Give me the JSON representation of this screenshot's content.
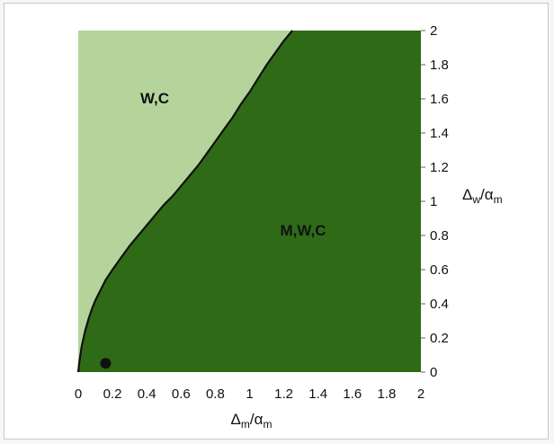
{
  "chart_data": {
    "type": "area",
    "xlabel": {
      "main": "Δ",
      "sub": "m",
      "sep": "/α",
      "sub2": "m"
    },
    "ylabel": {
      "main": "Δ",
      "sub": "w",
      "sep": "/α",
      "sub2": "m"
    },
    "xlim": [
      0,
      2
    ],
    "ylim": [
      0,
      2
    ],
    "x_ticks": [
      "0",
      "0.2",
      "0.4",
      "0.6",
      "0.8",
      "1",
      "1.2",
      "1.4",
      "1.6",
      "1.8",
      "2"
    ],
    "y_ticks": [
      "0",
      "0.2",
      "0.4",
      "0.6",
      "0.8",
      "1",
      "1.2",
      "1.4",
      "1.6",
      "1.8",
      "2"
    ],
    "y_axis_side": "right",
    "grid": false,
    "regions": [
      {
        "label": "W,C",
        "color": "#b5d49b",
        "location": "upper-left"
      },
      {
        "label": "M,W,C",
        "color": "#2f6b17",
        "location": "lower-right"
      }
    ],
    "boundary": {
      "x": [
        0.0,
        0.005,
        0.02,
        0.04,
        0.06,
        0.08,
        0.1,
        0.13,
        0.16,
        0.2,
        0.25,
        0.3,
        0.35,
        0.4,
        0.45,
        0.5,
        0.55,
        0.6,
        0.65,
        0.7,
        0.75,
        0.8,
        0.85,
        0.9,
        0.95,
        1.0,
        1.05,
        1.1,
        1.15,
        1.2,
        1.25
      ],
      "y": [
        0.0,
        0.05,
        0.15,
        0.24,
        0.31,
        0.37,
        0.42,
        0.48,
        0.54,
        0.6,
        0.67,
        0.74,
        0.8,
        0.86,
        0.92,
        0.98,
        1.03,
        1.09,
        1.15,
        1.21,
        1.28,
        1.35,
        1.42,
        1.49,
        1.57,
        1.64,
        1.72,
        1.8,
        1.87,
        1.94,
        2.0
      ]
    },
    "point": {
      "x": 0.16,
      "y": 0.03
    }
  },
  "colors": {
    "dark_region": "#2f6b17",
    "light_region": "#b5d49b",
    "boundary_line": "#111111",
    "point": "#111111"
  }
}
